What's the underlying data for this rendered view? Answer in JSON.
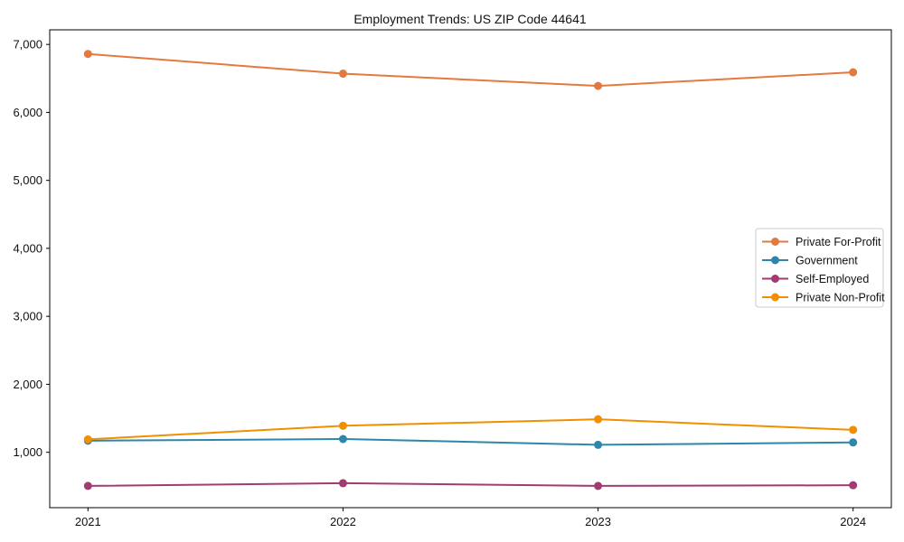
{
  "chart_data": {
    "type": "line",
    "title": "Employment Trends: US ZIP Code 44641",
    "x": [
      "2021",
      "2022",
      "2023",
      "2024"
    ],
    "series": [
      {
        "name": "Private For-Profit",
        "color": "#E2793E",
        "values": [
          6860,
          6570,
          6390,
          6590
        ]
      },
      {
        "name": "Government",
        "color": "#2E86AB",
        "values": [
          1170,
          1195,
          1110,
          1145
        ]
      },
      {
        "name": "Self-Employed",
        "color": "#A23B72",
        "values": [
          505,
          545,
          505,
          515
        ]
      },
      {
        "name": "Private Non-Profit",
        "color": "#F18F01",
        "values": [
          1190,
          1390,
          1485,
          1330
        ]
      }
    ],
    "yticks": [
      1000,
      2000,
      3000,
      4000,
      5000,
      6000,
      7000
    ],
    "ytick_labels": [
      "1,000",
      "2,000",
      "3,000",
      "4,000",
      "5,000",
      "6,000",
      "7,000"
    ],
    "ylim": [
      185,
      7215
    ],
    "xlabel": "",
    "ylabel": "",
    "grid": false,
    "legend_position": "right",
    "legend_border_color": "#cccccc",
    "axis_color": "#000000",
    "background_color": "#ffffff"
  }
}
